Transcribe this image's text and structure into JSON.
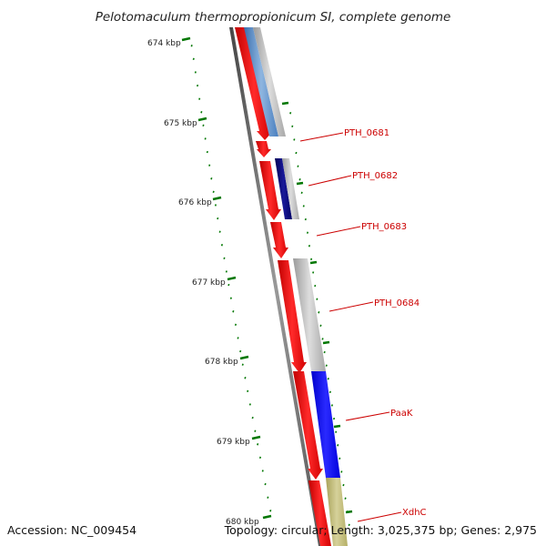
{
  "title": "Pelotomaculum thermopropionicum SI, complete genome",
  "footer": {
    "accession": "Accession: NC_009454",
    "topology": "Topology: circular; Length: 3,025,375 bp; Genes: 2,975"
  },
  "ticks": [
    {
      "label": "674 kbp"
    },
    {
      "label": "675 kbp"
    },
    {
      "label": "676 kbp"
    },
    {
      "label": "677 kbp"
    },
    {
      "label": "678 kbp"
    },
    {
      "label": "679 kbp"
    },
    {
      "label": "680 kbp"
    }
  ],
  "genes": [
    {
      "id": "g0",
      "label": ""
    },
    {
      "id": "g1",
      "label": "PTH_0681"
    },
    {
      "id": "g2",
      "label": "PTH_0682"
    },
    {
      "id": "g3",
      "label": "PTH_0683"
    },
    {
      "id": "g4",
      "label": "PTH_0684"
    },
    {
      "id": "g5",
      "label": "PaaK"
    },
    {
      "id": "g6",
      "label": "XdhC"
    }
  ],
  "colors": {
    "cds": "#ff0000",
    "backbone": "#666666",
    "tick": "#007700",
    "label": "#cc0000",
    "leader": "#cc0000",
    "category_lightblue": "#4f86c6",
    "category_navy": "#000080",
    "category_gray": "#aaaaaa",
    "category_blue": "#0000ff",
    "category_khaki": "#bdb76b"
  }
}
